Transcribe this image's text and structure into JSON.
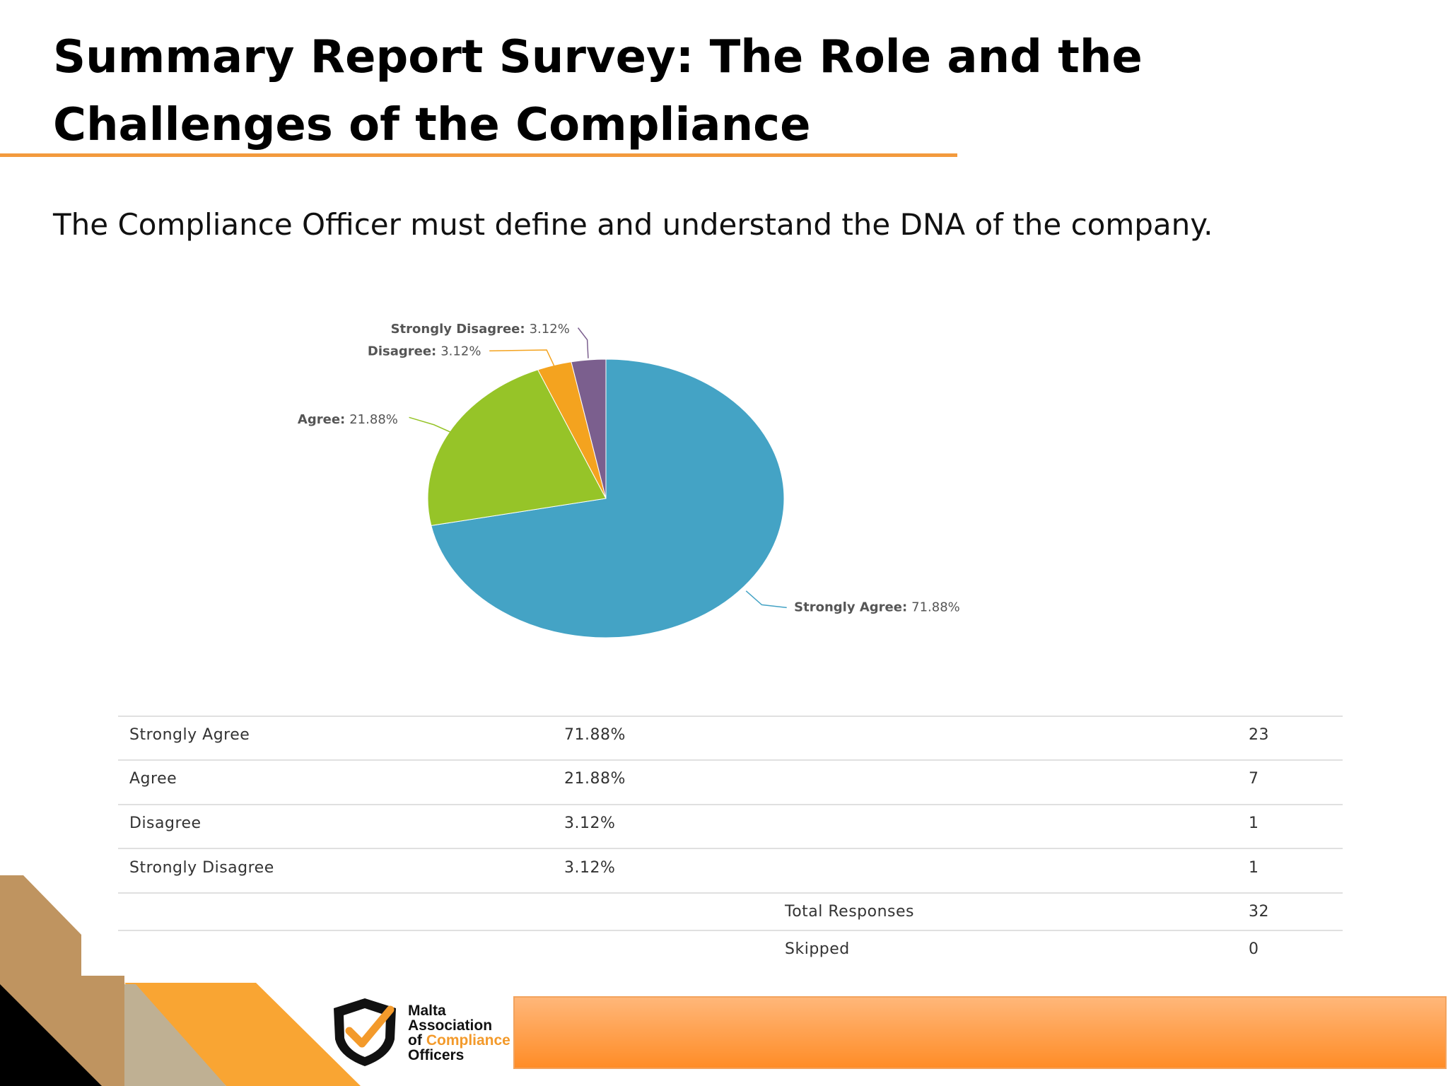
{
  "slide": {
    "title_lines": [
      "Summary Report Survey: The Role and the",
      "Challenges of the Compliance"
    ],
    "statement": "The Compliance Officer must define and understand the DNA of the company."
  },
  "chart_data": {
    "type": "pie",
    "categories": [
      "Strongly Agree",
      "Agree",
      "Disagree",
      "Strongly Disagree"
    ],
    "values": [
      71.88,
      21.88,
      3.12,
      3.12
    ],
    "value_labels": [
      "71.88%",
      "21.88%",
      "3.12%",
      "3.12%"
    ],
    "label_separator": ":",
    "colors": [
      "#44a3c5",
      "#96c428",
      "#f4a31f",
      "#7b5f8e"
    ]
  },
  "table": {
    "rows": [
      [
        "Strongly Agree",
        "71.88%",
        "23"
      ],
      [
        "Agree",
        "21.88%",
        "7"
      ],
      [
        "Disagree",
        "3.12%",
        "1"
      ],
      [
        "Strongly Disagree",
        "3.12%",
        "1"
      ]
    ],
    "summary": [
      [
        "Total Responses",
        "32"
      ],
      [
        "Skipped",
        "0"
      ]
    ]
  },
  "logo": {
    "lines": [
      "Malta",
      "Association",
      "of",
      "Compliance",
      "Officers"
    ]
  }
}
